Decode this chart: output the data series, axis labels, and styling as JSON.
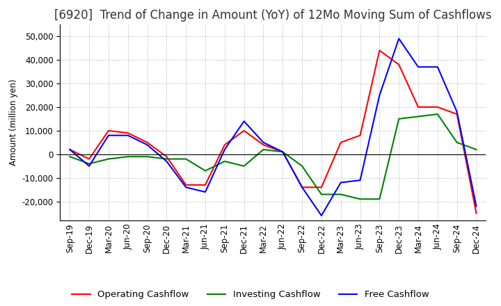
{
  "title": "[6920]  Trend of Change in Amount (YoY) of 12Mo Moving Sum of Cashflows",
  "ylabel": "Amount (million yen)",
  "x_labels": [
    "Sep-19",
    "Dec-19",
    "Mar-20",
    "Jun-20",
    "Sep-20",
    "Dec-20",
    "Mar-21",
    "Jun-21",
    "Sep-21",
    "Dec-21",
    "Mar-22",
    "Jun-22",
    "Sep-22",
    "Dec-22",
    "Mar-23",
    "Jun-23",
    "Sep-23",
    "Dec-23",
    "Mar-24",
    "Jun-24",
    "Sep-24",
    "Dec-24"
  ],
  "operating": [
    2000,
    -2000,
    10000,
    9000,
    5000,
    -1000,
    -13000,
    -13000,
    4000,
    10000,
    4000,
    1000,
    -14000,
    -14000,
    5000,
    8000,
    44000,
    38000,
    20000,
    20000,
    17000,
    -25000
  ],
  "investing": [
    -1000,
    -4000,
    -2000,
    -1000,
    -1000,
    -2000,
    -2000,
    -7000,
    -3000,
    -5000,
    2000,
    1000,
    -5000,
    -17000,
    -17000,
    -19000,
    -19000,
    15000,
    16000,
    17000,
    5000,
    2000
  ],
  "free": [
    2000,
    -5000,
    8000,
    8000,
    4000,
    -3000,
    -14000,
    -16000,
    2000,
    14000,
    5000,
    1000,
    -14000,
    -26000,
    -12000,
    -11000,
    25000,
    49000,
    37000,
    37000,
    18000,
    -22000
  ],
  "ylim": [
    -28000,
    55000
  ],
  "yticks": [
    -20000,
    -10000,
    0,
    10000,
    20000,
    30000,
    40000,
    50000
  ],
  "operating_color": "#FF0000",
  "investing_color": "#008000",
  "free_color": "#0000FF",
  "background_color": "#FFFFFF",
  "grid_color": "#AAAAAA",
  "title_fontsize": 12,
  "axis_fontsize": 8.5,
  "legend_fontsize": 9.5
}
